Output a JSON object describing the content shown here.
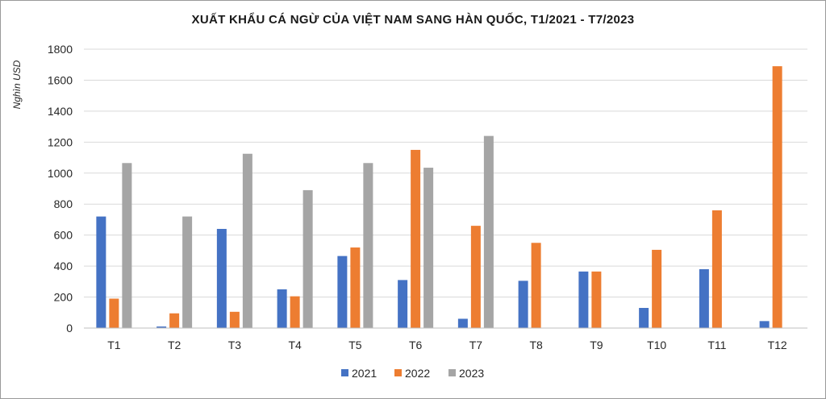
{
  "chart_data": {
    "type": "bar",
    "title": "XUẤT KHẨU CÁ NGỪ CỦA VIỆT NAM SANG HÀN QUỐC, T1/2021 - T7/2023",
    "ylabel": "Nghìn USD",
    "xlabel": "",
    "ylim": [
      0,
      1800
    ],
    "yticks": [
      0,
      200,
      400,
      600,
      800,
      1000,
      1200,
      1400,
      1600,
      1800
    ],
    "grid": true,
    "legend_position": "bottom",
    "categories": [
      "T1",
      "T2",
      "T3",
      "T4",
      "T5",
      "T6",
      "T7",
      "T8",
      "T9",
      "T10",
      "T11",
      "T12"
    ],
    "series": [
      {
        "name": "2021",
        "color": "#4472C4",
        "values": [
          720,
          10,
          640,
          250,
          465,
          310,
          60,
          305,
          365,
          130,
          380,
          45
        ]
      },
      {
        "name": "2022",
        "color": "#ED7D31",
        "values": [
          190,
          95,
          105,
          205,
          520,
          1150,
          660,
          550,
          365,
          505,
          760,
          1690
        ]
      },
      {
        "name": "2023",
        "color": "#A5A5A5",
        "values": [
          1065,
          720,
          1125,
          890,
          1065,
          1035,
          1240,
          null,
          null,
          null,
          null,
          null
        ]
      }
    ]
  }
}
